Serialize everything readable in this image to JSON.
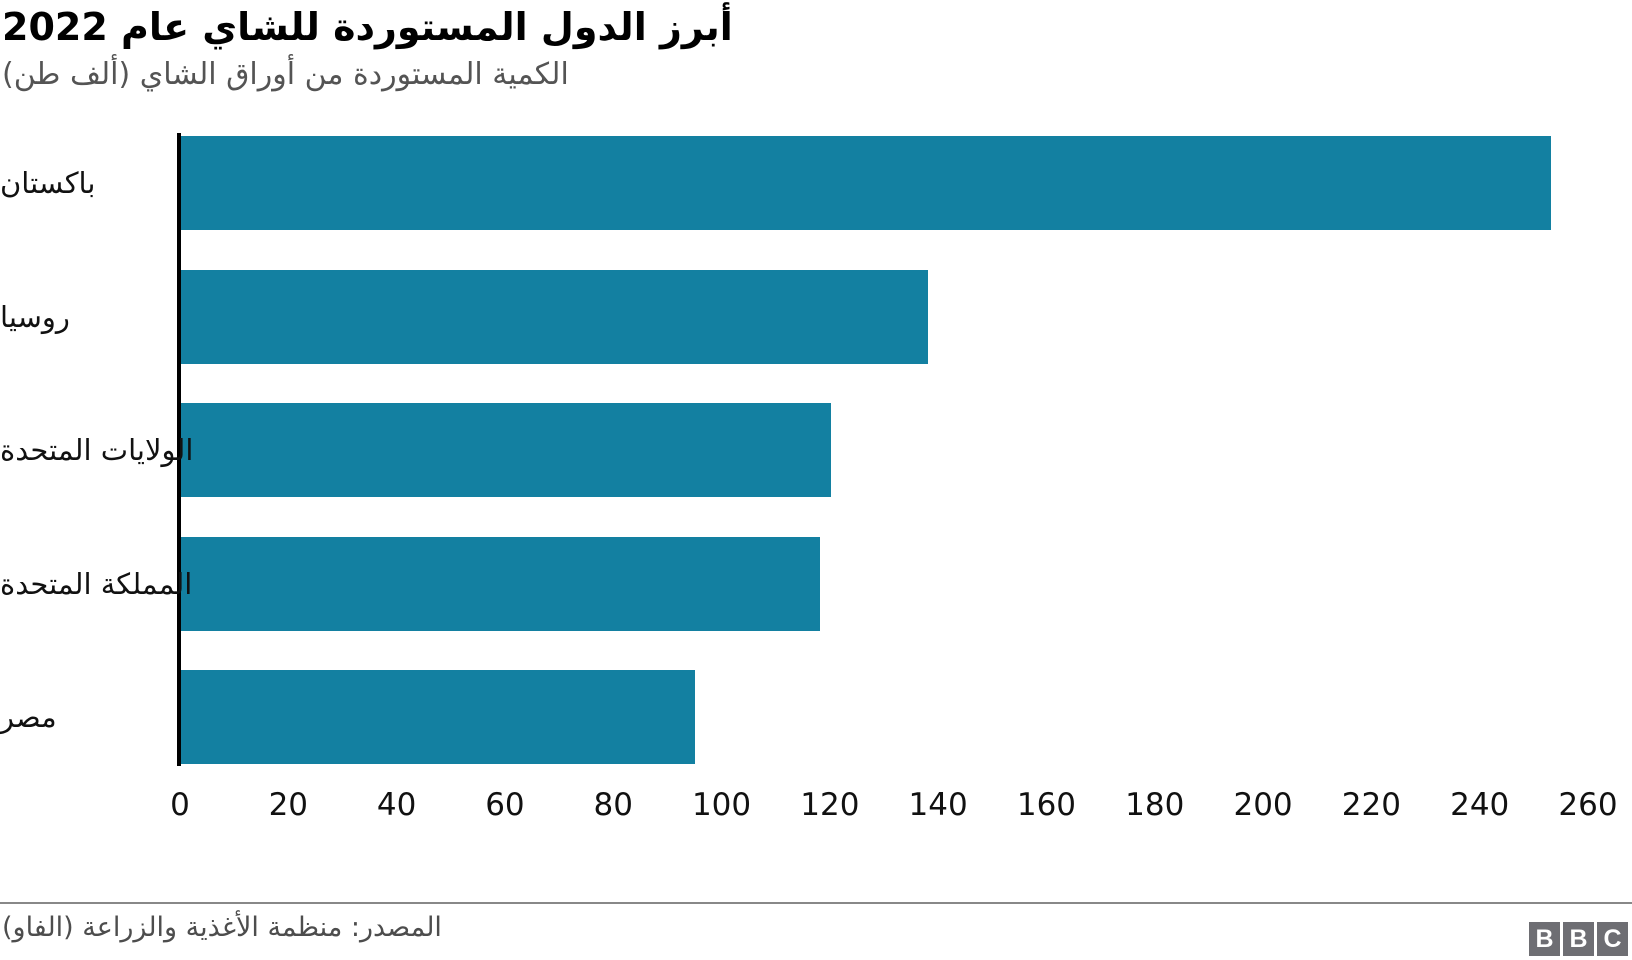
{
  "header": {
    "title": "أبرز الدول المستوردة للشاي عام 2022",
    "subtitle": "الكمية المستوردة من أوراق الشاي (ألف طن)"
  },
  "chart_data": {
    "type": "bar",
    "orientation": "horizontal",
    "title": "أبرز الدول المستوردة للشاي عام 2022",
    "subtitle": "الكمية المستوردة من أوراق الشاي (ألف طن)",
    "categories": [
      "باكستان",
      "روسيا",
      "الولايات المتحدة",
      "المملكة المتحدة",
      "مصر"
    ],
    "values": [
      253,
      138,
      120,
      118,
      95
    ],
    "xlabel": "",
    "ylabel": "",
    "xlim": [
      0,
      260
    ],
    "xticks": [
      0,
      20,
      40,
      60,
      80,
      100,
      120,
      140,
      160,
      180,
      200,
      220,
      240,
      260
    ],
    "grid": false,
    "legend": "none"
  },
  "footer": {
    "source": "المصدر: منظمة الأغذية والزراعة (الفاو)",
    "logo_letters": [
      "B",
      "B",
      "C"
    ]
  },
  "colors": {
    "bar": "#1380A1",
    "title_text": "#000000",
    "subtitle_text": "#545454",
    "axis_text": "#111111",
    "source_text": "#4d4d4d",
    "divider": "#888888",
    "logo_bg": "#6e6e73"
  }
}
